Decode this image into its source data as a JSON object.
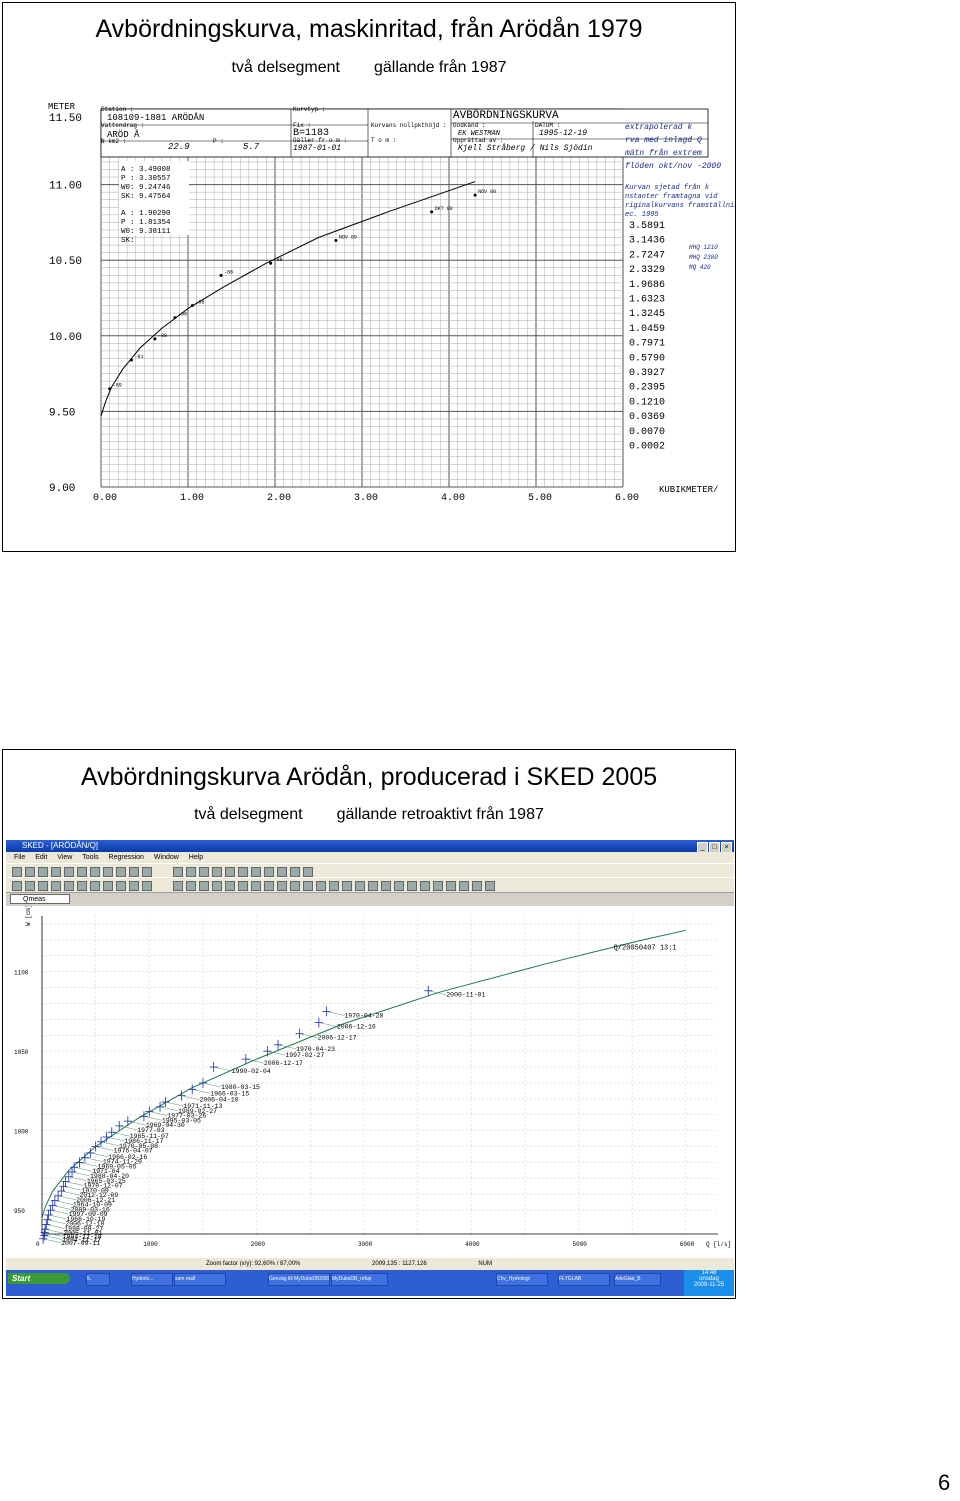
{
  "slide1": {
    "title": "Avbördningskurva, maskinritad, från Arödån  1979",
    "subtitle_left": "två delsegment",
    "subtitle_right": "gällande från 1987",
    "form": {
      "unit_y": "METER",
      "station_label": "Station :",
      "station_value": "108109-1881 ARÖDÅN",
      "vattendrag_label": "Vattendrag :",
      "vattendrag_value": "ARÖD Å",
      "nkm_label": "N km2 :",
      "nkm_value": "22.9",
      "p_label": "P :",
      "p_value": "5.7",
      "fix_label": "Fix :",
      "fix_value": "B=1183",
      "galler_label": "Gäller fr o m :",
      "galler_value": "1987-01-01",
      "kurvtyp_label": "Kurvtyp :",
      "korvens_label": "Kurvans nollpkthöjd :",
      "tom_label": "T o m :",
      "godkand_label": "Godkänd :",
      "godkand_value": "EK WESTMAN",
      "upprattad_label": "Upprättad av :",
      "upprattad_value": "Kjell Stråberg / Nils Sjödin",
      "kurva_title": "AVBÖRDNINGSKURVA",
      "datum_label": "DATUM :",
      "datum_value": "1995-12-19",
      "params": [
        "A : 3.49008",
        "P : 3.30557",
        "W0: 9.24746",
        "SK: 9.47564",
        "A : 1.90290",
        "P : 1.81354",
        "W0: 9.38111",
        "SK:"
      ],
      "handwritten_note_1": "extrapolerad kurva med inlagd Q-mätn från extrem flöden okt/nov -2000",
      "handwritten_note_2": "Kurvan sjetad från konstanter framtagna vid originalkurvans framställning dec. 1995",
      "flood_values": [
        "HHQ 1210",
        "MHQ 2380",
        "MQ 420"
      ],
      "unit_x": "KUBIKMETER/"
    }
  },
  "chart_data": [
    {
      "type": "line",
      "title": "",
      "xlabel": "KUBIKMETER/",
      "ylabel": "METER",
      "xlim": [
        0,
        6
      ],
      "ylim": [
        9.0,
        11.5
      ],
      "x_ticks": [
        "0.00",
        "1.00",
        "2.00",
        "3.00",
        "4.00",
        "5.00",
        "6.00"
      ],
      "y_ticks": [
        "9.00",
        "9.50",
        "10.00",
        "10.50",
        "11.00",
        "11.50"
      ],
      "table_values": [
        "3.5891",
        "3.1436",
        "2.7247",
        "2.3329",
        "1.9686",
        "1.6323",
        "1.3245",
        "1.0459",
        "0.7971",
        "0.5790",
        "0.3927",
        "0.2395",
        "0.1210",
        "0.0369",
        "0.0070",
        "0.0002"
      ],
      "series": [
        {
          "x": [
            0.0,
            0.05,
            0.12,
            0.25,
            0.45,
            0.7,
            1.0,
            1.4,
            1.9,
            2.5,
            3.3,
            4.3
          ],
          "y": [
            9.47,
            9.56,
            9.66,
            9.78,
            9.92,
            10.05,
            10.18,
            10.32,
            10.48,
            10.65,
            10.82,
            11.02
          ]
        }
      ],
      "points": [
        {
          "x": 0.1,
          "y": 9.65,
          "label": "-89"
        },
        {
          "x": 0.35,
          "y": 9.84,
          "label": "-81"
        },
        {
          "x": 0.62,
          "y": 9.98,
          "label": "-88"
        },
        {
          "x": 0.85,
          "y": 10.12,
          "label": "-90"
        },
        {
          "x": 1.05,
          "y": 10.2,
          "label": "-88"
        },
        {
          "x": 1.38,
          "y": 10.4,
          "label": "-88"
        },
        {
          "x": 1.95,
          "y": 10.48,
          "label": "-88"
        },
        {
          "x": 2.7,
          "y": 10.63,
          "label": "NOV 00"
        },
        {
          "x": 3.8,
          "y": 10.82,
          "label": "OKT 00"
        },
        {
          "x": 4.3,
          "y": 10.93,
          "label": "NOV 00"
        }
      ]
    },
    {
      "type": "scatter",
      "title": "",
      "xlabel": "Q [l/s]",
      "ylabel": "W [cm]",
      "xlim": [
        0,
        6300
      ],
      "ylim": [
        935,
        1135
      ],
      "x_ticks": [
        "0",
        "1000",
        "2000",
        "3000",
        "4000",
        "5000",
        "6000"
      ],
      "y_ticks": [
        "950",
        "1000",
        "1050",
        "1100"
      ],
      "curve_label": "Q/20050407 13:1",
      "series": [
        {
          "name": "",
          "x": [
            0,
            30,
            100,
            250,
            500,
            900,
            1400,
            2000,
            2800,
            3700,
            4700,
            5600,
            6000
          ],
          "y": [
            945,
            952,
            962,
            975,
            990,
            1008,
            1027,
            1045,
            1067,
            1087,
            1105,
            1120,
            1126
          ]
        }
      ],
      "points": [
        {
          "x": 3600,
          "y": 1088,
          "label": "2000-11-01"
        },
        {
          "x": 2650,
          "y": 1075,
          "label": "1970-04-28"
        },
        {
          "x": 2580,
          "y": 1068,
          "label": "2006-12-16"
        },
        {
          "x": 2400,
          "y": 1061,
          "label": "2006-12-17"
        },
        {
          "x": 2200,
          "y": 1054,
          "label": "1970-04-23"
        },
        {
          "x": 2100,
          "y": 1050,
          "label": "1997-02-27"
        },
        {
          "x": 1900,
          "y": 1045,
          "label": "2006-12-17"
        },
        {
          "x": 1600,
          "y": 1040,
          "label": "1990-02-04"
        },
        {
          "x": 1500,
          "y": 1030,
          "label": "1980-03-15"
        },
        {
          "x": 1400,
          "y": 1026,
          "label": "1966-03-15"
        },
        {
          "x": 1300,
          "y": 1022,
          "label": "2006-04-10"
        },
        {
          "x": 1150,
          "y": 1018,
          "label": "1971-11-13"
        },
        {
          "x": 1100,
          "y": 1015,
          "label": "1989-02-27"
        },
        {
          "x": 1000,
          "y": 1012,
          "label": "1977-03-26"
        },
        {
          "x": 950,
          "y": 1009,
          "label": "1995-03-05"
        },
        {
          "x": 800,
          "y": 1006,
          "label": "1969-04-30"
        },
        {
          "x": 720,
          "y": 1003,
          "label": "1977-03"
        },
        {
          "x": 650,
          "y": 999,
          "label": "1965-11-07"
        },
        {
          "x": 600,
          "y": 996,
          "label": "1986-11-17"
        },
        {
          "x": 550,
          "y": 993,
          "label": "1970-05-08"
        },
        {
          "x": 500,
          "y": 990,
          "label": "1976-04-07"
        },
        {
          "x": 450,
          "y": 986,
          "label": "1966-02-16"
        },
        {
          "x": 400,
          "y": 983,
          "label": "1974-11-29"
        },
        {
          "x": 350,
          "y": 980,
          "label": "1969-05-05"
        },
        {
          "x": 300,
          "y": 977,
          "label": "1971-04"
        },
        {
          "x": 280,
          "y": 974,
          "label": "1988-04-20"
        },
        {
          "x": 250,
          "y": 971,
          "label": "1965-03-25"
        },
        {
          "x": 220,
          "y": 968,
          "label": "1979-12-07"
        },
        {
          "x": 200,
          "y": 965,
          "label": "1970-09"
        },
        {
          "x": 180,
          "y": 962,
          "label": "2012-12-09"
        },
        {
          "x": 150,
          "y": 959,
          "label": "2006-12-21"
        },
        {
          "x": 120,
          "y": 956,
          "label": "1964-10-09"
        },
        {
          "x": 100,
          "y": 953,
          "label": "2009-03-16"
        },
        {
          "x": 80,
          "y": 950,
          "label": "1997-09-09"
        },
        {
          "x": 60,
          "y": 947,
          "label": "1966-10-19"
        },
        {
          "x": 50,
          "y": 944,
          "label": "2006-12-10"
        },
        {
          "x": 40,
          "y": 941,
          "label": "1998-08-27"
        },
        {
          "x": 30,
          "y": 938,
          "label": "2005-11-01"
        },
        {
          "x": 25,
          "y": 936,
          "label": "1994-11-19"
        },
        {
          "x": 20,
          "y": 934,
          "label": "1994-11-17"
        },
        {
          "x": 10,
          "y": 932,
          "label": "2007-09-11"
        }
      ]
    }
  ],
  "slide2": {
    "title": "Avbördningskurva Arödån, producerad i SKED 2005",
    "subtitle_left": "två delsegment",
    "subtitle_right": "gällande retroaktivt från 1987",
    "app": {
      "window_title": "SKED - [ARÖDÅN/Q]",
      "menu": [
        "File",
        "Edit",
        "View",
        "Tools",
        "Regression",
        "Window",
        "Help"
      ],
      "selector_value": "Qmeas",
      "status_text": "Zoom factor (x/y): 92,60% / 87,00%",
      "status_coords": "2009,135 : 1127,126",
      "status_mode": "NUM",
      "start_label": "Start",
      "tasks": [
        "5.",
        "Hydrolo...",
        "sam mall",
        "Genväg till MyDubsDB2009",
        "MyDubsDB_refup",
        "Chv_Hydrologi",
        "FLYGLAB",
        "ArleGlad_B"
      ],
      "clock": "14:48",
      "clock_day": "onsdag",
      "clock_date": "2009-11-25"
    }
  },
  "page_number": "6"
}
